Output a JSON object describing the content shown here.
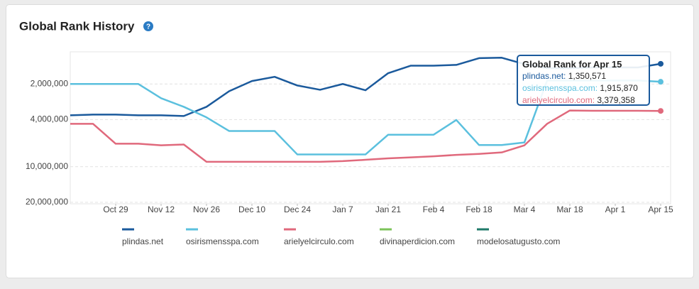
{
  "chart_data": {
    "type": "line",
    "title": "Global Rank History",
    "title_icon": "?",
    "log_scale": true,
    "y_reversed": true,
    "grid": true,
    "ylim": [
      1070000,
      20600000
    ],
    "yticks": [
      {
        "value": 2000000,
        "label": "2,000,000"
      },
      {
        "value": 4000000,
        "label": "4,000,000"
      },
      {
        "value": 10000000,
        "label": "10,000,000"
      },
      {
        "value": 20000000,
        "label": "20,000,000"
      }
    ],
    "categories": [
      null,
      null,
      "Oct 29",
      null,
      "Nov 12",
      null,
      "Nov 26",
      null,
      "Dec 10",
      null,
      "Dec 24",
      null,
      "Jan 7",
      null,
      "Jan 21",
      null,
      "Feb 4",
      null,
      "Feb 18",
      null,
      "Mar 4",
      null,
      "Mar 18",
      null,
      "Apr 1",
      null,
      "Apr 15"
    ],
    "series": [
      {
        "name": "plindas.net",
        "color": "#1b5a9c",
        "values": [
          3680000,
          3630000,
          3630000,
          3680000,
          3680000,
          3730000,
          3120000,
          2300000,
          1890000,
          1740000,
          2060000,
          2240000,
          2000000,
          2260000,
          1620000,
          1400000,
          1400000,
          1380000,
          1210000,
          1200000,
          1360000,
          1470000,
          1470000,
          1450000,
          1450000,
          1450000,
          1350571
        ]
      },
      {
        "name": "osirismensspa.com",
        "color": "#5bc0de",
        "values": [
          2000000,
          2000000,
          2000000,
          2000000,
          2640000,
          3120000,
          3830000,
          5000000,
          5000000,
          5000000,
          7890000,
          7890000,
          7890000,
          7890000,
          5370000,
          5370000,
          5370000,
          4030000,
          6560000,
          6560000,
          6240000,
          1870000,
          1870000,
          1870000,
          1870000,
          1870000,
          1915870
        ]
      },
      {
        "name": "arielyelcirculo.com",
        "color": "#e0697c",
        "values": [
          4340000,
          4340000,
          6400000,
          6400000,
          6600000,
          6500000,
          9100000,
          9100000,
          9100000,
          9100000,
          9100000,
          9100000,
          8980000,
          8750000,
          8500000,
          8340000,
          8180000,
          7950000,
          7800000,
          7580000,
          6600000,
          4340000,
          3350000,
          3370000,
          3370000,
          3370000,
          3379358
        ]
      },
      {
        "name": "divinaperdicion.com",
        "color": "#7cc35a",
        "values": [
          null,
          null,
          null,
          null,
          null,
          null,
          null,
          null,
          null,
          null,
          null,
          null,
          null,
          null,
          null,
          null,
          null,
          null,
          null,
          null,
          null,
          null,
          null,
          null,
          null,
          null,
          null
        ]
      },
      {
        "name": "modelosatugusto.com",
        "color": "#1f7a6a",
        "values": [
          null,
          null,
          null,
          null,
          null,
          null,
          null,
          null,
          null,
          null,
          null,
          null,
          null,
          null,
          null,
          null,
          null,
          null,
          null,
          null,
          null,
          null,
          null,
          null,
          null,
          null,
          null
        ]
      }
    ],
    "tooltip": {
      "title": "Global Rank for Apr 15",
      "value_labels": [
        "1,350,571",
        "1,915,870",
        "3,379,358"
      ]
    }
  }
}
